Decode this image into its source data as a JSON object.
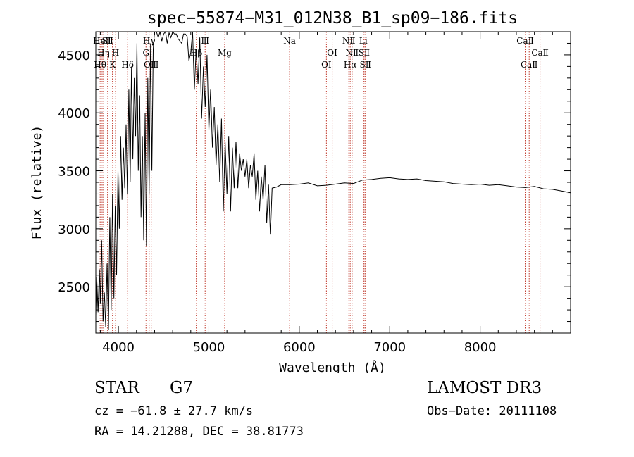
{
  "chart_data": {
    "type": "line",
    "title": "spec−55874−M31_012N38_B1_sp09−186.fits",
    "xlabel": "Wavelength (Å)",
    "ylabel": "Flux (relative)",
    "xlim": [
      3750,
      9000
    ],
    "ylim": [
      2100,
      4700
    ],
    "xticks": [
      4000,
      5000,
      6000,
      7000,
      8000
    ],
    "yticks": [
      2500,
      3000,
      3500,
      4000,
      4500
    ],
    "series": [
      {
        "name": "flux",
        "x": [
          3750,
          3760,
          3775,
          3790,
          3800,
          3815,
          3830,
          3845,
          3860,
          3875,
          3890,
          3905,
          3920,
          3935,
          3950,
          3965,
          3980,
          3995,
          4010,
          4025,
          4040,
          4055,
          4070,
          4085,
          4100,
          4115,
          4130,
          4145,
          4160,
          4175,
          4190,
          4205,
          4220,
          4235,
          4250,
          4265,
          4280,
          4295,
          4310,
          4325,
          4340,
          4355,
          4370,
          4385,
          4400,
          4420,
          4440,
          4460,
          4480,
          4500,
          4520,
          4540,
          4560,
          4580,
          4600,
          4620,
          4640,
          4660,
          4680,
          4700,
          4720,
          4740,
          4760,
          4780,
          4800,
          4820,
          4840,
          4860,
          4880,
          4900,
          4920,
          4940,
          4960,
          4980,
          5000,
          5020,
          5040,
          5060,
          5080,
          5100,
          5120,
          5140,
          5160,
          5180,
          5200,
          5220,
          5240,
          5260,
          5280,
          5300,
          5320,
          5340,
          5360,
          5380,
          5400,
          5420,
          5440,
          5460,
          5480,
          5500,
          5520,
          5540,
          5560,
          5580,
          5600,
          5620,
          5640,
          5660,
          5680,
          5700,
          5750,
          5800,
          5900,
          6000,
          6100,
          6200,
          6300,
          6400,
          6500,
          6600,
          6700,
          6800,
          6900,
          7000,
          7100,
          7200,
          7300,
          7400,
          7500,
          7600,
          7700,
          7800,
          7900,
          8000,
          8100,
          8200,
          8300,
          8400,
          8500,
          8600,
          8700,
          8800,
          8900,
          9000
        ],
        "values": [
          2250,
          2580,
          2280,
          2650,
          2350,
          2900,
          2200,
          2450,
          2150,
          2700,
          2130,
          3100,
          2300,
          3300,
          2400,
          3200,
          2600,
          3500,
          3000,
          3800,
          3250,
          3700,
          3350,
          3900,
          3300,
          4200,
          3400,
          4400,
          3600,
          4300,
          3800,
          4600,
          3500,
          4150,
          3100,
          3800,
          2900,
          4000,
          2850,
          4300,
          3300,
          4600,
          3500,
          4550,
          4700,
          4700,
          4650,
          4700,
          4620,
          4680,
          4700,
          4600,
          4690,
          4650,
          4700,
          4680,
          4680,
          4640,
          4620,
          4600,
          4680,
          4680,
          4660,
          4450,
          4520,
          4700,
          4200,
          4550,
          4250,
          4650,
          3950,
          4400,
          4050,
          4500,
          3850,
          4200,
          3700,
          4050,
          3550,
          3900,
          3400,
          3950,
          3150,
          3750,
          3300,
          3800,
          3150,
          3700,
          3350,
          3750,
          3350,
          3650,
          3500,
          3600,
          3450,
          3600,
          3350,
          3550,
          3450,
          3650,
          3250,
          3500,
          3150,
          3450,
          3250,
          3550,
          3050,
          3380,
          2950,
          3350,
          3360,
          3380,
          3380,
          3385,
          3395,
          3370,
          3375,
          3385,
          3395,
          3390,
          3420,
          3425,
          3435,
          3440,
          3430,
          3425,
          3430,
          3415,
          3410,
          3405,
          3390,
          3385,
          3380,
          3385,
          3375,
          3380,
          3370,
          3360,
          3355,
          3365,
          3345,
          3340,
          3325,
          3310
        ]
      }
    ],
    "lines": [
      {
        "label": "HeⅡ",
        "wave": 3820,
        "row": 0
      },
      {
        "label": "Hη",
        "wave": 3835,
        "row": 1
      },
      {
        "label": "Hθ",
        "wave": 3798,
        "row": 2
      },
      {
        "label": "SⅡ",
        "wave": 3880,
        "row": 0
      },
      {
        "label": "H",
        "wave": 3968,
        "row": 1
      },
      {
        "label": "K",
        "wave": 3934,
        "row": 2
      },
      {
        "label": "Hδ",
        "wave": 4102,
        "row": 2
      },
      {
        "label": "Hγ",
        "wave": 4340,
        "row": 0
      },
      {
        "label": "G",
        "wave": 4305,
        "row": 1
      },
      {
        "label": "OⅢ",
        "wave": 4363,
        "row": 2
      },
      {
        "label": "Hβ",
        "wave": 4861,
        "row": 1
      },
      {
        "label": "Ⅲ",
        "wave": 4959,
        "row": 0
      },
      {
        "label": "Mg",
        "wave": 5175,
        "row": 1
      },
      {
        "label": "Na",
        "wave": 5893,
        "row": 0
      },
      {
        "label": "OⅠ",
        "wave": 6300,
        "row": 2
      },
      {
        "label": "OⅠ",
        "wave": 6364,
        "row": 1
      },
      {
        "label": "NⅡ",
        "wave": 6548,
        "row": 0
      },
      {
        "label": "NⅡ",
        "wave": 6584,
        "row": 1
      },
      {
        "label": "Hα",
        "wave": 6563,
        "row": 2
      },
      {
        "label": "Li",
        "wave": 6708,
        "row": 0
      },
      {
        "label": "SⅡ",
        "wave": 6717,
        "row": 1
      },
      {
        "label": "SⅡ",
        "wave": 6731,
        "row": 2
      },
      {
        "label": "CaⅡ",
        "wave": 8498,
        "row": 0
      },
      {
        "label": "CaⅡ",
        "wave": 8542,
        "row": 2
      },
      {
        "label": "CaⅡ",
        "wave": 8662,
        "row": 1
      }
    ]
  },
  "info": {
    "class": "STAR",
    "subclass": "G7",
    "survey": "LAMOST DR3",
    "redshift": "cz = −61.8 ± 27.7 km/s",
    "obs_date": "Obs−Date: 20111108",
    "coords": "RA =  14.21288, DEC =  38.81773"
  },
  "colors": {
    "axis": "#000000",
    "spectrum": "#000000",
    "line_marker": "#c0392b"
  }
}
